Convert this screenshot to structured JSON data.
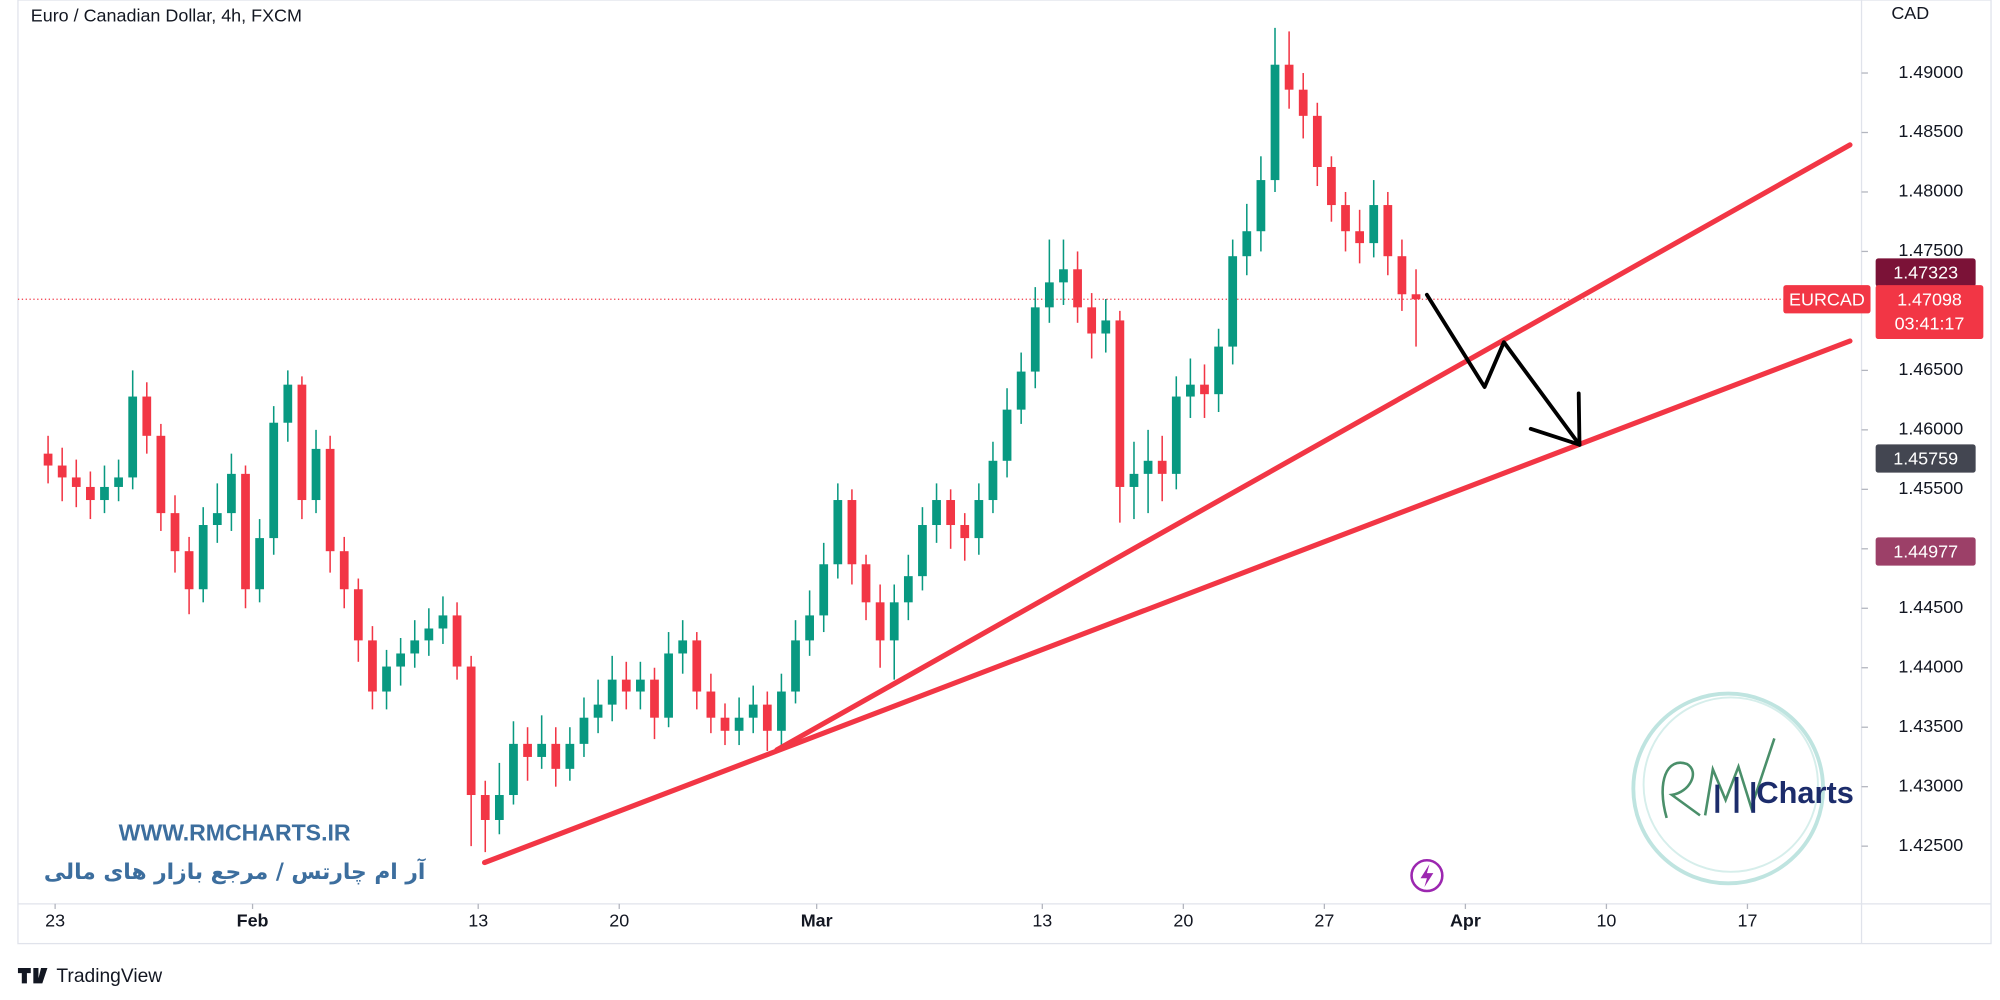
{
  "chart_data": {
    "type": "candlestick",
    "title": "Euro / Canadian Dollar, 4h, FXCM",
    "currency": "CAD",
    "symbol": "EURCAD",
    "last_price": 1.47098,
    "countdown": "03:41:17",
    "up_color": "#089981",
    "down_color": "#f23645",
    "xlim": [
      -1.636,
      129.09
    ],
    "ylim": [
      1.42015,
      1.49614
    ],
    "xticks": [
      {
        "value": 1,
        "label": "23"
      },
      {
        "value": 15,
        "label": "Feb"
      },
      {
        "value": 31,
        "label": "13"
      },
      {
        "value": 41,
        "label": "20"
      },
      {
        "value": 55,
        "label": "Mar"
      },
      {
        "value": 71,
        "label": "13"
      },
      {
        "value": 81,
        "label": "20"
      },
      {
        "value": 91,
        "label": "27"
      },
      {
        "value": 101,
        "label": "Apr"
      },
      {
        "value": 111,
        "label": "10"
      },
      {
        "value": 121,
        "label": "17"
      }
    ],
    "yticks": [
      {
        "value": 1.425,
        "label": "1.42500"
      },
      {
        "value": 1.43,
        "label": "1.43000"
      },
      {
        "value": 1.435,
        "label": "1.43500"
      },
      {
        "value": 1.44,
        "label": "1.44000"
      },
      {
        "value": 1.445,
        "label": "1.44500"
      },
      {
        "value": 1.45,
        "label": "1.45000"
      },
      {
        "value": 1.455,
        "label": "1.45500"
      },
      {
        "value": 1.46,
        "label": "1.46000"
      },
      {
        "value": 1.465,
        "label": "1.46500"
      },
      {
        "value": 1.47,
        "label": "1.47000"
      },
      {
        "value": 1.475,
        "label": "1.47500"
      },
      {
        "value": 1.48,
        "label": "1.48000"
      },
      {
        "value": 1.485,
        "label": "1.48500"
      },
      {
        "value": 1.49,
        "label": "1.49000"
      }
    ],
    "price_labels": [
      {
        "value": 1.47323,
        "color": "#7b1237"
      },
      {
        "value": 1.45759,
        "color": "#434651"
      },
      {
        "value": 1.44977,
        "color": "#9c4068"
      }
    ],
    "open": [
      1.458,
      1.457,
      1.456,
      1.4552,
      1.4541,
      1.4552,
      1.456,
      1.4628,
      1.4595,
      1.453,
      1.4498,
      1.4466,
      1.452,
      1.453,
      1.4563,
      1.4466,
      1.4509,
      1.4606,
      1.4638,
      1.4541,
      1.4584,
      1.4498,
      1.4466,
      1.4423,
      1.438,
      1.4401,
      1.4412,
      1.4423,
      1.4433,
      1.4444,
      1.4401,
      1.4293,
      1.4272,
      1.4293,
      1.4336,
      1.4325,
      1.4336,
      1.4315,
      1.4336,
      1.4358,
      1.4369,
      1.439,
      1.438,
      1.439,
      1.4358,
      1.4412,
      1.4423,
      1.438,
      1.4358,
      1.4347,
      1.4358,
      1.4369,
      1.4347,
      1.438,
      1.4423,
      1.4444,
      1.4487,
      1.4541,
      1.4487,
      1.4455,
      1.4423,
      1.4455,
      1.4477,
      1.452,
      1.4541,
      1.452,
      1.4509,
      1.4541,
      1.4574,
      1.4617,
      1.4649,
      1.4703,
      1.4724,
      1.4735,
      1.4703,
      1.4681,
      1.4692,
      1.4552,
      1.4563,
      1.4574,
      1.4563,
      1.4628,
      1.4638,
      1.463,
      1.467,
      1.4746,
      1.4767,
      1.481,
      1.4907,
      1.4886,
      1.4864,
      1.4821,
      1.4789,
      1.4767,
      1.4757,
      1.4789,
      1.4746,
      1.4714
    ],
    "high": [
      1.4595,
      1.4585,
      1.4575,
      1.4565,
      1.457,
      1.4575,
      1.465,
      1.464,
      1.4605,
      1.4545,
      1.451,
      1.4535,
      1.4555,
      1.458,
      1.457,
      1.4525,
      1.462,
      1.465,
      1.4645,
      1.46,
      1.4595,
      1.451,
      1.4475,
      1.4435,
      1.4415,
      1.4425,
      1.444,
      1.445,
      1.446,
      1.4455,
      1.441,
      1.4305,
      1.432,
      1.4355,
      1.435,
      1.436,
      1.435,
      1.435,
      1.4375,
      1.439,
      1.441,
      1.4405,
      1.4405,
      1.44,
      1.443,
      1.444,
      1.443,
      1.4395,
      1.437,
      1.4375,
      1.4385,
      1.438,
      1.4395,
      1.444,
      1.4465,
      1.4505,
      1.4555,
      1.455,
      1.4495,
      1.447,
      1.447,
      1.4495,
      1.4535,
      1.4555,
      1.455,
      1.453,
      1.4555,
      1.459,
      1.4635,
      1.4665,
      1.472,
      1.476,
      1.476,
      1.475,
      1.4715,
      1.471,
      1.47,
      1.459,
      1.46,
      1.4595,
      1.4645,
      1.466,
      1.4655,
      1.4685,
      1.476,
      1.479,
      1.483,
      1.4938,
      1.4935,
      1.49,
      1.4875,
      1.483,
      1.48,
      1.4785,
      1.481,
      1.48,
      1.476,
      1.4735
    ],
    "low": [
      1.4555,
      1.454,
      1.4535,
      1.4525,
      1.453,
      1.454,
      1.455,
      1.458,
      1.4515,
      1.448,
      1.4445,
      1.4455,
      1.4505,
      1.4515,
      1.445,
      1.4455,
      1.4495,
      1.459,
      1.4525,
      1.453,
      1.448,
      1.445,
      1.4405,
      1.4365,
      1.4365,
      1.4385,
      1.44,
      1.441,
      1.442,
      1.439,
      1.425,
      1.4245,
      1.426,
      1.4285,
      1.4305,
      1.4315,
      1.43,
      1.4305,
      1.4325,
      1.4345,
      1.4355,
      1.4365,
      1.4365,
      1.434,
      1.435,
      1.4395,
      1.4365,
      1.4345,
      1.4335,
      1.4335,
      1.4345,
      1.433,
      1.4335,
      1.437,
      1.441,
      1.443,
      1.4475,
      1.447,
      1.444,
      1.44,
      1.439,
      1.444,
      1.4465,
      1.4505,
      1.45,
      1.449,
      1.4495,
      1.453,
      1.456,
      1.4605,
      1.4635,
      1.469,
      1.4705,
      1.469,
      1.466,
      1.4665,
      1.4522,
      1.4525,
      1.453,
      1.454,
      1.455,
      1.461,
      1.461,
      1.4615,
      1.4655,
      1.473,
      1.475,
      1.48,
      1.487,
      1.4845,
      1.4805,
      1.4775,
      1.475,
      1.474,
      1.4745,
      1.473,
      1.47,
      1.467
    ],
    "close": [
      1.457,
      1.456,
      1.4552,
      1.4541,
      1.4552,
      1.456,
      1.4628,
      1.4595,
      1.453,
      1.4498,
      1.4466,
      1.452,
      1.453,
      1.4563,
      1.4466,
      1.4509,
      1.4606,
      1.4638,
      1.4541,
      1.4584,
      1.4498,
      1.4466,
      1.4423,
      1.438,
      1.4401,
      1.4412,
      1.4423,
      1.4433,
      1.4444,
      1.4401,
      1.4293,
      1.4272,
      1.4293,
      1.4336,
      1.4325,
      1.4336,
      1.4315,
      1.4336,
      1.4358,
      1.4369,
      1.439,
      1.438,
      1.439,
      1.4358,
      1.4412,
      1.4423,
      1.438,
      1.4358,
      1.4347,
      1.4358,
      1.4369,
      1.4347,
      1.438,
      1.4423,
      1.4444,
      1.4487,
      1.4541,
      1.4487,
      1.4455,
      1.4423,
      1.4455,
      1.4477,
      1.452,
      1.4541,
      1.452,
      1.4509,
      1.4541,
      1.4574,
      1.4617,
      1.4649,
      1.4703,
      1.4724,
      1.4735,
      1.4703,
      1.4681,
      1.4692,
      1.4552,
      1.4563,
      1.4574,
      1.4563,
      1.4628,
      1.4638,
      1.463,
      1.467,
      1.4746,
      1.4767,
      1.481,
      1.4907,
      1.4886,
      1.4864,
      1.4821,
      1.4789,
      1.4767,
      1.4757,
      1.4789,
      1.4746,
      1.4714,
      1.47098
    ],
    "trend_lines": [
      {
        "color": "#f23645",
        "points": [
          [
            31.45,
            1.42362
          ],
          [
            128.27,
            1.46747
          ]
        ]
      },
      {
        "color": "#f23645",
        "points": [
          [
            52.18,
            1.4331
          ],
          [
            128.27,
            1.48396
          ]
        ]
      }
    ],
    "arrow": {
      "color": "#000000",
      "points": [
        [
          98.27,
          1.47136
        ],
        [
          102.36,
          1.4636
        ],
        [
          103.73,
          1.46737
        ],
        [
          109.09,
          1.45875
        ]
      ]
    },
    "watermark": {
      "site": "WWW.RMCHARTS.IR",
      "tagline": "آر ام چارتس / مرجع بازار های مالی",
      "logo": "Charts"
    },
    "footer": "TradingView"
  }
}
